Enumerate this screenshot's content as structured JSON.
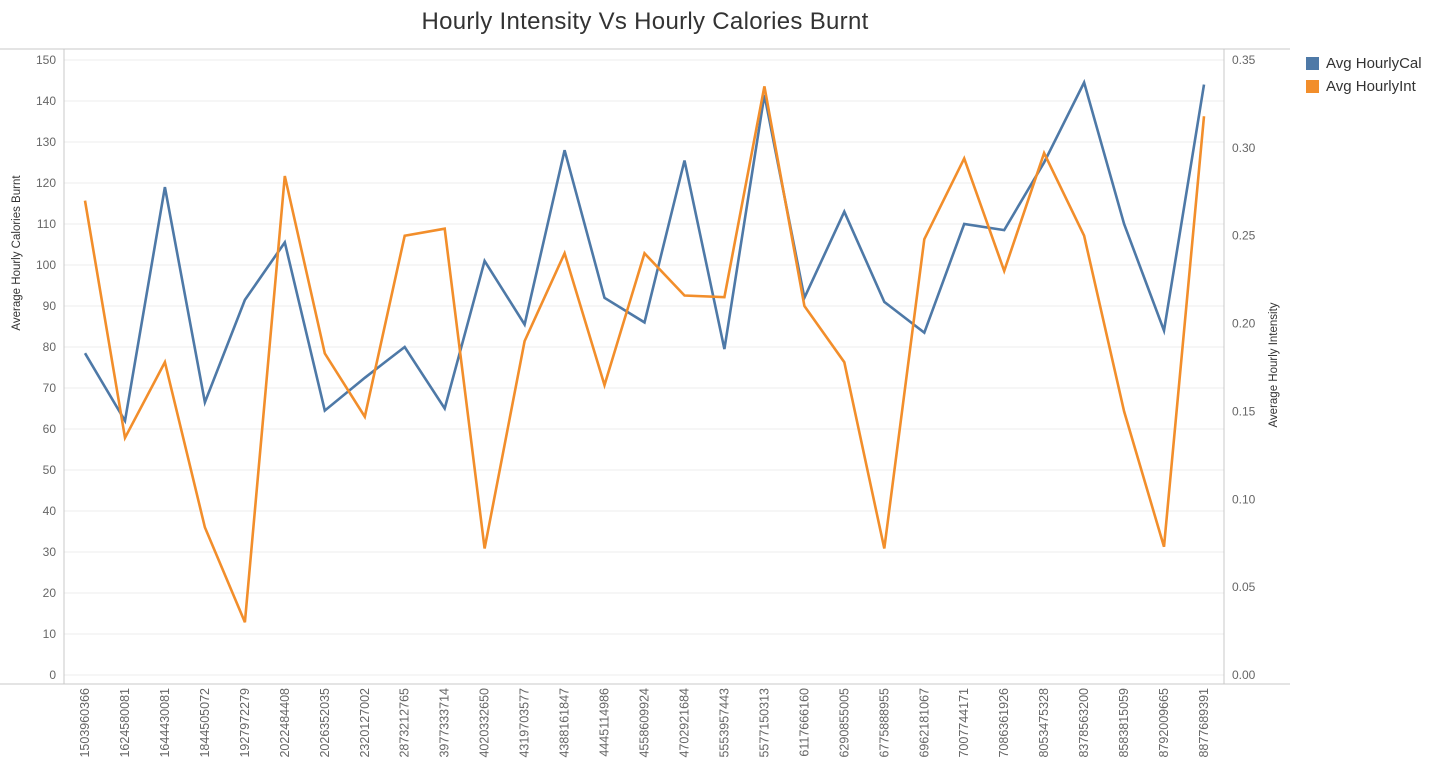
{
  "chart_data": {
    "type": "line",
    "title": "Hourly Intensity Vs Hourly Calories Burnt",
    "ylabel": "Average Hourly Calories Burnt",
    "y2label": "Average Hourly Intensity",
    "ylim": [
      0,
      150
    ],
    "y2lim": [
      0,
      0.35
    ],
    "yticks": [
      0,
      10,
      20,
      30,
      40,
      50,
      60,
      70,
      80,
      90,
      100,
      110,
      120,
      130,
      140,
      150
    ],
    "y2ticks": [
      "0.00",
      "0.05",
      "0.10",
      "0.15",
      "0.20",
      "0.25",
      "0.30",
      "0.35"
    ],
    "grid": true,
    "legend_position": "top-right",
    "categories": [
      "1503960366",
      "1624580081",
      "1644430081",
      "1844505072",
      "1927972279",
      "2022484408",
      "2026352035",
      "2320127002",
      "2873212765",
      "3977333714",
      "4020332650",
      "4319703577",
      "4388161847",
      "4445114986",
      "4558609924",
      "4702921684",
      "5553957443",
      "5577150313",
      "6117666160",
      "6290855005",
      "6775888955",
      "6962181067",
      "7007744171",
      "7086361926",
      "8053475328",
      "8378563200",
      "8583815059",
      "8792009665",
      "8877689391"
    ],
    "series": [
      {
        "name": "Avg HourlyCal",
        "axis": "left",
        "color": "#4e79a7",
        "values": [
          78.5,
          62.0,
          119.0,
          66.5,
          91.5,
          105.5,
          64.5,
          72.5,
          80.0,
          65.0,
          101.0,
          85.5,
          128.0,
          92.0,
          86.0,
          125.5,
          79.5,
          141.5,
          92.0,
          113.0,
          91.0,
          83.5,
          110.0,
          108.5,
          125.0,
          144.5,
          110.0,
          84.0,
          144.0
        ]
      },
      {
        "name": "Avg HourlyInt",
        "axis": "right",
        "color": "#f28e2b",
        "values": [
          0.27,
          0.135,
          0.178,
          0.084,
          0.03,
          0.284,
          0.183,
          0.147,
          0.25,
          0.254,
          0.072,
          0.19,
          0.24,
          0.165,
          0.24,
          0.216,
          0.215,
          0.335,
          0.21,
          0.178,
          0.072,
          0.248,
          0.294,
          0.23,
          0.297,
          0.25,
          0.15,
          0.073,
          0.318
        ]
      }
    ]
  }
}
